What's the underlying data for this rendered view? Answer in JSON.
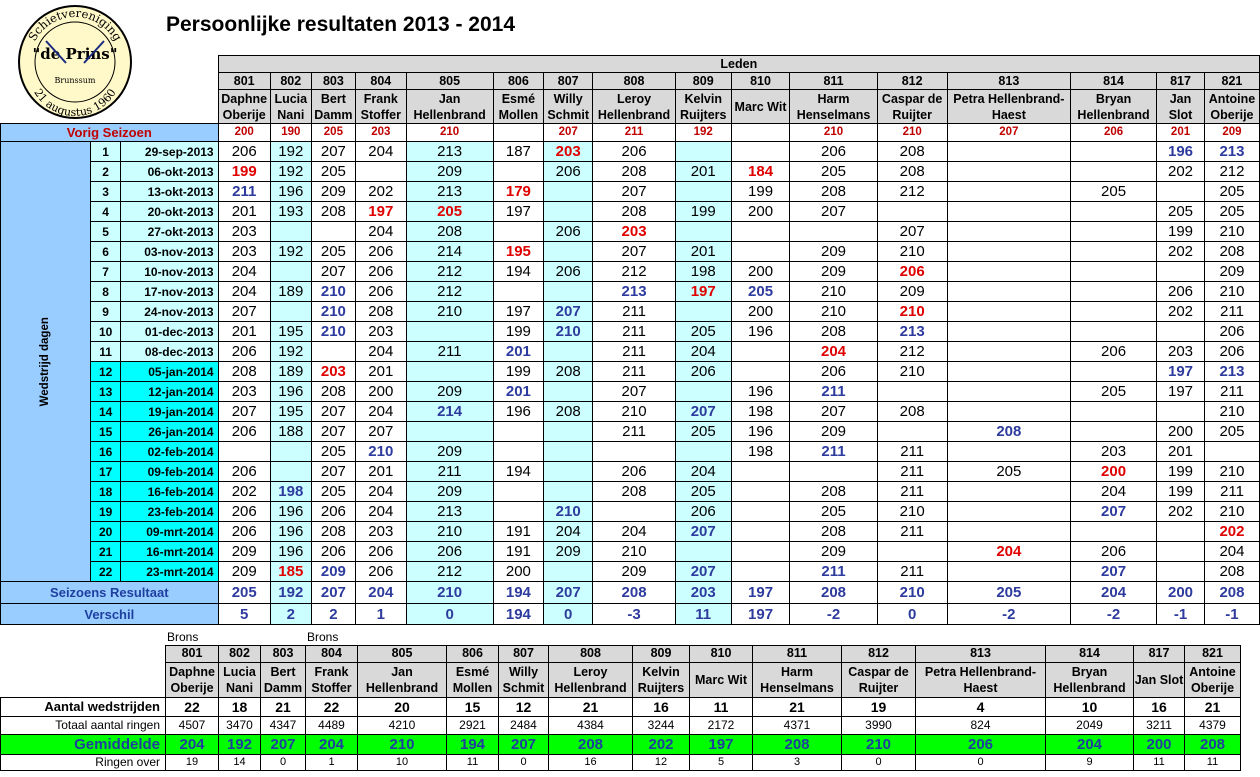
{
  "logo": {
    "line1": "Schietvereniging",
    "line2": "\"de Prins\"",
    "line3": "Brunssum",
    "line4": "21 augustus 1960"
  },
  "title": "Persoonlijke resultaten 2013 - 2014",
  "leden_label": "Leden",
  "members": [
    {
      "nr": "801",
      "name": "Daphne Oberije"
    },
    {
      "nr": "802",
      "name": "Lucia Nani"
    },
    {
      "nr": "803",
      "name": "Bert Damm"
    },
    {
      "nr": "804",
      "name": "Frank Stoffer"
    },
    {
      "nr": "805",
      "name": "Jan Hellenbrand"
    },
    {
      "nr": "806",
      "name": "Esmé Mollen"
    },
    {
      "nr": "807",
      "name": "Willy Schmit"
    },
    {
      "nr": "808",
      "name": "Leroy Hellenbrand"
    },
    {
      "nr": "809",
      "name": "Kelvin Ruijters"
    },
    {
      "nr": "810",
      "name": "Marc Wit"
    },
    {
      "nr": "811",
      "name": "Harm Henselmans"
    },
    {
      "nr": "812",
      "name": "Caspar de Ruijter"
    },
    {
      "nr": "813",
      "name": "Petra Hellenbrand-Haest"
    },
    {
      "nr": "814",
      "name": "Bryan Hellenbrand"
    },
    {
      "nr": "817",
      "name": "Jan Slot"
    },
    {
      "nr": "821",
      "name": "Antoine Oberije"
    }
  ],
  "previous_label": "Vorig Seizoen",
  "previous": [
    "200",
    "190",
    "205",
    "203",
    "210",
    "",
    "207",
    "211",
    "192",
    "",
    "210",
    "210",
    "207",
    "206",
    "201",
    "209"
  ],
  "side_label": "Wedstrijd dagen",
  "rounds": [
    {
      "n": "1",
      "date": "29-sep-2013",
      "v": [
        "206",
        "192",
        "207",
        "204",
        "213",
        "187",
        "203",
        "206",
        "",
        "",
        "206",
        "208",
        "",
        "",
        "196",
        "213"
      ]
    },
    {
      "n": "2",
      "date": "06-okt-2013",
      "v": [
        "199",
        "192",
        "205",
        "",
        "209",
        "",
        "206",
        "208",
        "201",
        "184",
        "205",
        "208",
        "",
        "",
        "202",
        "212"
      ]
    },
    {
      "n": "3",
      "date": "13-okt-2013",
      "v": [
        "211",
        "196",
        "209",
        "202",
        "213",
        "179",
        "",
        "207",
        "",
        "199",
        "208",
        "212",
        "",
        "205",
        "",
        "205"
      ]
    },
    {
      "n": "4",
      "date": "20-okt-2013",
      "v": [
        "201",
        "193",
        "208",
        "197",
        "205",
        "197",
        "",
        "208",
        "199",
        "200",
        "207",
        "",
        "",
        "",
        "205",
        "205"
      ]
    },
    {
      "n": "5",
      "date": "27-okt-2013",
      "v": [
        "203",
        "",
        "",
        "204",
        "208",
        "",
        "206",
        "203",
        "",
        "",
        "",
        "207",
        "",
        "",
        "199",
        "210"
      ]
    },
    {
      "n": "6",
      "date": "03-nov-2013",
      "v": [
        "203",
        "192",
        "205",
        "206",
        "214",
        "195",
        "",
        "207",
        "201",
        "",
        "209",
        "210",
        "",
        "",
        "202",
        "208"
      ]
    },
    {
      "n": "7",
      "date": "10-nov-2013",
      "v": [
        "204",
        "",
        "207",
        "206",
        "212",
        "194",
        "206",
        "212",
        "198",
        "200",
        "209",
        "206",
        "",
        "",
        "",
        "209"
      ]
    },
    {
      "n": "8",
      "date": "17-nov-2013",
      "v": [
        "204",
        "189",
        "210",
        "206",
        "212",
        "",
        "",
        "213",
        "197",
        "205",
        "210",
        "209",
        "",
        "",
        "206",
        "210"
      ]
    },
    {
      "n": "9",
      "date": "24-nov-2013",
      "v": [
        "207",
        "",
        "210",
        "208",
        "210",
        "197",
        "207",
        "211",
        "",
        "200",
        "210",
        "210",
        "",
        "",
        "202",
        "211"
      ]
    },
    {
      "n": "10",
      "date": "01-dec-2013",
      "v": [
        "201",
        "195",
        "210",
        "203",
        "",
        "199",
        "210",
        "211",
        "205",
        "196",
        "208",
        "213",
        "",
        "",
        "",
        "206"
      ]
    },
    {
      "n": "11",
      "date": "08-dec-2013",
      "v": [
        "206",
        "192",
        "",
        "204",
        "211",
        "201",
        "",
        "211",
        "204",
        "",
        "204",
        "212",
        "",
        "206",
        "203",
        "206"
      ]
    },
    {
      "n": "12",
      "date": "05-jan-2014",
      "v": [
        "208",
        "189",
        "203",
        "201",
        "",
        "199",
        "208",
        "211",
        "206",
        "",
        "206",
        "210",
        "",
        "",
        "197",
        "213"
      ]
    },
    {
      "n": "13",
      "date": "12-jan-2014",
      "v": [
        "203",
        "196",
        "208",
        "200",
        "209",
        "201",
        "",
        "207",
        "",
        "196",
        "211",
        "",
        "",
        "205",
        "197",
        "211"
      ]
    },
    {
      "n": "14",
      "date": "19-jan-2014",
      "v": [
        "207",
        "195",
        "207",
        "204",
        "214",
        "196",
        "208",
        "210",
        "207",
        "198",
        "207",
        "208",
        "",
        "",
        "",
        "210"
      ]
    },
    {
      "n": "15",
      "date": "26-jan-2014",
      "v": [
        "206",
        "188",
        "207",
        "207",
        "",
        "",
        "",
        "211",
        "205",
        "196",
        "209",
        "",
        "208",
        "",
        "200",
        "205"
      ]
    },
    {
      "n": "16",
      "date": "02-feb-2014",
      "v": [
        "",
        "",
        "205",
        "210",
        "209",
        "",
        "",
        "",
        "",
        "198",
        "211",
        "211",
        "",
        "203",
        "201",
        ""
      ]
    },
    {
      "n": "17",
      "date": "09-feb-2014",
      "v": [
        "206",
        "",
        "207",
        "201",
        "211",
        "194",
        "",
        "206",
        "204",
        "",
        "",
        "211",
        "205",
        "200",
        "199",
        "210"
      ]
    },
    {
      "n": "18",
      "date": "16-feb-2014",
      "v": [
        "202",
        "198",
        "205",
        "204",
        "209",
        "",
        "",
        "208",
        "205",
        "",
        "208",
        "211",
        "",
        "204",
        "199",
        "211"
      ]
    },
    {
      "n": "19",
      "date": "23-feb-2014",
      "v": [
        "206",
        "196",
        "206",
        "204",
        "213",
        "",
        "210",
        "",
        "206",
        "",
        "205",
        "210",
        "",
        "207",
        "202",
        "210"
      ]
    },
    {
      "n": "20",
      "date": "09-mrt-2014",
      "v": [
        "206",
        "196",
        "208",
        "203",
        "210",
        "191",
        "204",
        "204",
        "207",
        "",
        "208",
        "211",
        "",
        "",
        "",
        "202"
      ]
    },
    {
      "n": "21",
      "date": "16-mrt-2014",
      "v": [
        "209",
        "196",
        "206",
        "206",
        "206",
        "191",
        "209",
        "210",
        "",
        "",
        "209",
        "",
        "204",
        "206",
        "",
        "204"
      ]
    },
    {
      "n": "22",
      "date": "23-mrt-2014",
      "v": [
        "209",
        "185",
        "209",
        "206",
        "212",
        "200",
        "",
        "209",
        "207",
        "",
        "211",
        "211",
        "",
        "207",
        "",
        "208"
      ]
    }
  ],
  "high_marks": [
    "1-14",
    "1-15",
    "3-0",
    "8-2",
    "9-2",
    "10-2",
    "13-5",
    "12-14",
    "14-4",
    "15-12",
    "10-6",
    "10-11",
    "11-5",
    "12-15",
    "13-10",
    "16-3",
    "19-6",
    "18-1",
    "16-10",
    "19-13",
    "20-8",
    "22-10",
    "22-8",
    "13-5",
    "14-8",
    "16-10",
    "22-13",
    "8-7",
    "8-9",
    "9-6",
    "1-6",
    "22-2"
  ],
  "season_label": "Seizoens Resultaat",
  "season": [
    "205",
    "192",
    "207",
    "204",
    "210",
    "194",
    "207",
    "208",
    "203",
    "197",
    "208",
    "210",
    "205",
    "204",
    "200",
    "208"
  ],
  "diff_label": "Verschil",
  "diff": [
    "5",
    "2",
    "2",
    "1",
    "0",
    "194",
    "0",
    "-3",
    "11",
    "197",
    "-2",
    "0",
    "-2",
    "-2",
    "-1",
    "-1"
  ],
  "medals": [
    "Brons",
    "",
    "",
    "Brons",
    "",
    "",
    "",
    "",
    "",
    "",
    "",
    "",
    "",
    "",
    "",
    ""
  ],
  "aantal_label": "Aantal wedstrijden",
  "aantal": [
    "22",
    "18",
    "21",
    "22",
    "20",
    "15",
    "12",
    "21",
    "16",
    "11",
    "21",
    "19",
    "4",
    "10",
    "16",
    "21"
  ],
  "totaal_label": "Totaal aantal ringen",
  "totaal": [
    "4507",
    "3470",
    "4347",
    "4489",
    "4210",
    "2921",
    "2484",
    "4384",
    "3244",
    "2172",
    "4371",
    "3990",
    "824",
    "2049",
    "3211",
    "4379"
  ],
  "gem_label": "Gemiddelde",
  "gem": [
    "204",
    "192",
    "207",
    "204",
    "210",
    "194",
    "207",
    "208",
    "202",
    "197",
    "208",
    "210",
    "206",
    "204",
    "200",
    "208"
  ],
  "over_label": "Ringen over",
  "over": [
    "19",
    "14",
    "0",
    "1",
    "10",
    "11",
    "0",
    "16",
    "12",
    "5",
    "3",
    "0",
    "0",
    "9",
    "11",
    "11"
  ],
  "colors": {
    "highlight_blue": "#2e3b9e",
    "low_red": "#e00000",
    "header_gray": "#d9d9d9",
    "light_blue": "#99ccff",
    "pale_cyan": "#ccffff",
    "cyan": "#00ffff",
    "green": "#00ff00"
  }
}
